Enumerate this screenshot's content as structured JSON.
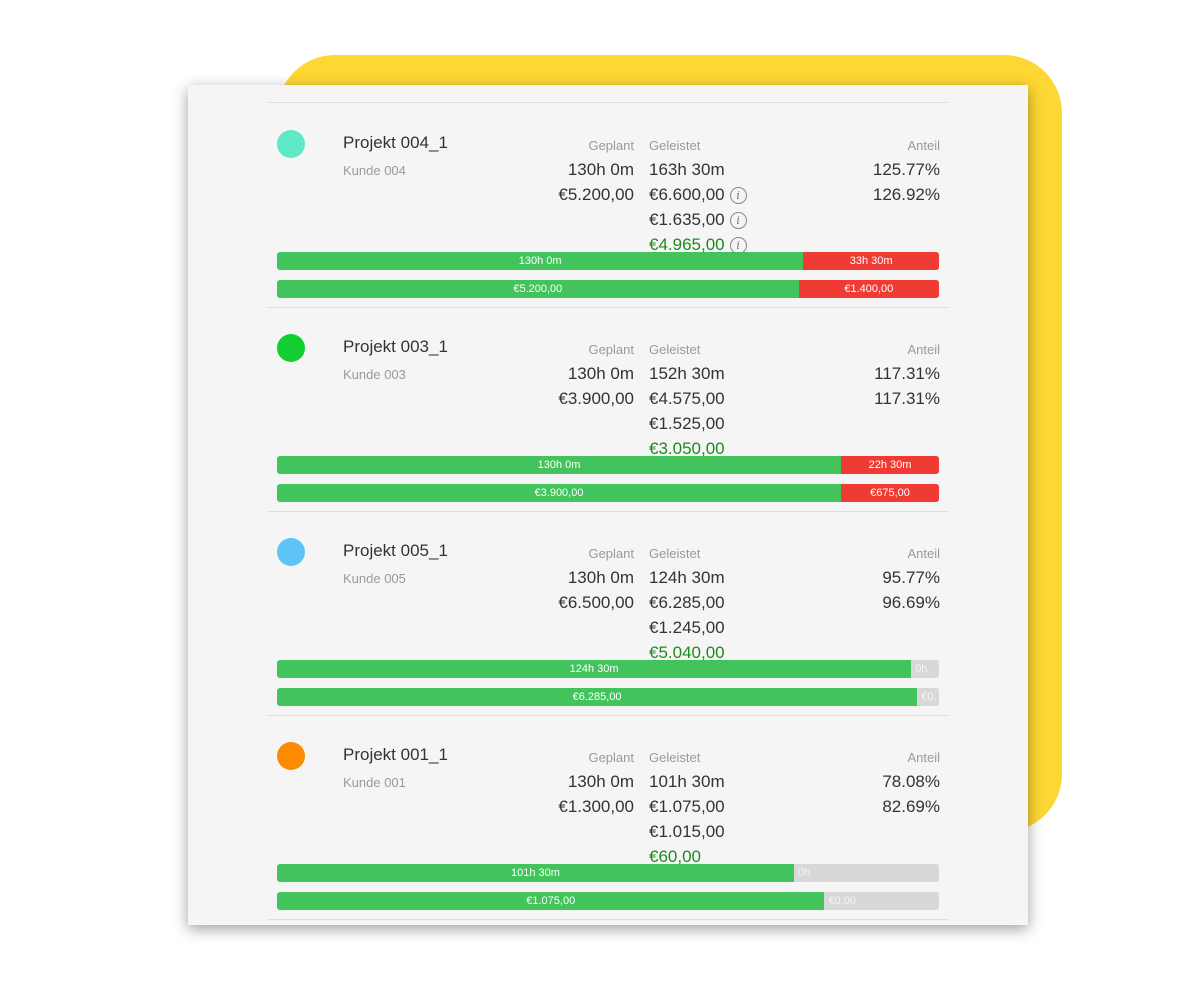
{
  "colors": {
    "accent_bar": "#43c35b",
    "over_bar": "#ef3b33",
    "rest_bar": "#d8d8d8",
    "highlight_text": "#1e8a1e",
    "decoration": "#fdd835"
  },
  "labels": {
    "planned": "Geplant",
    "done": "Geleistet",
    "share": "Anteil"
  },
  "projects": [
    {
      "name": "Projekt 004_1",
      "client": "Kunde 004",
      "dot_color": "#5ee8c5",
      "planned_hours": "130h 0m",
      "planned_amount": "€5.200,00",
      "done_hours": "163h 30m",
      "done_amount": "€6.600,00",
      "cost": "€1.635,00",
      "profit": "€4.965,00",
      "share_hours": "125.77%",
      "share_amount": "126.92%",
      "has_info": true,
      "hours_bar": {
        "base_label": "130h 0m",
        "extra_label": "33h 30m",
        "base_fraction": 0.795,
        "extra_type": "over"
      },
      "money_bar": {
        "base_label": "€5.200,00",
        "extra_label": "€1.400,00",
        "base_fraction": 0.788,
        "extra_type": "over"
      }
    },
    {
      "name": "Projekt 003_1",
      "client": "Kunde 003",
      "dot_color": "#10cf2e",
      "planned_hours": "130h 0m",
      "planned_amount": "€3.900,00",
      "done_hours": "152h 30m",
      "done_amount": "€4.575,00",
      "cost": "€1.525,00",
      "profit": "€3.050,00",
      "share_hours": "117.31%",
      "share_amount": "117.31%",
      "has_info": false,
      "hours_bar": {
        "base_label": "130h 0m",
        "extra_label": "22h 30m",
        "base_fraction": 0.852,
        "extra_type": "over"
      },
      "money_bar": {
        "base_label": "€3.900,00",
        "extra_label": "€675,00",
        "base_fraction": 0.852,
        "extra_type": "over"
      }
    },
    {
      "name": "Projekt 005_1",
      "client": "Kunde 005",
      "dot_color": "#5ec3f5",
      "planned_hours": "130h 0m",
      "planned_amount": "€6.500,00",
      "done_hours": "124h 30m",
      "done_amount": "€6.285,00",
      "cost": "€1.245,00",
      "profit": "€5.040,00",
      "share_hours": "95.77%",
      "share_amount": "96.69%",
      "has_info": false,
      "hours_bar": {
        "base_label": "124h 30m",
        "extra_label": "0h",
        "base_fraction": 0.958,
        "extra_type": "rest"
      },
      "money_bar": {
        "base_label": "€6.285,00",
        "extra_label": "€0,",
        "base_fraction": 0.967,
        "extra_type": "rest"
      }
    },
    {
      "name": "Projekt 001_1",
      "client": "Kunde 001",
      "dot_color": "#fb8c00",
      "planned_hours": "130h 0m",
      "planned_amount": "€1.300,00",
      "done_hours": "101h 30m",
      "done_amount": "€1.075,00",
      "cost": "€1.015,00",
      "profit": "€60,00",
      "share_hours": "78.08%",
      "share_amount": "82.69%",
      "has_info": false,
      "hours_bar": {
        "base_label": "101h 30m",
        "extra_label": "0h",
        "base_fraction": 0.781,
        "extra_type": "rest"
      },
      "money_bar": {
        "base_label": "€1.075,00",
        "extra_label": "€0,00",
        "base_fraction": 0.827,
        "extra_type": "rest"
      }
    }
  ]
}
